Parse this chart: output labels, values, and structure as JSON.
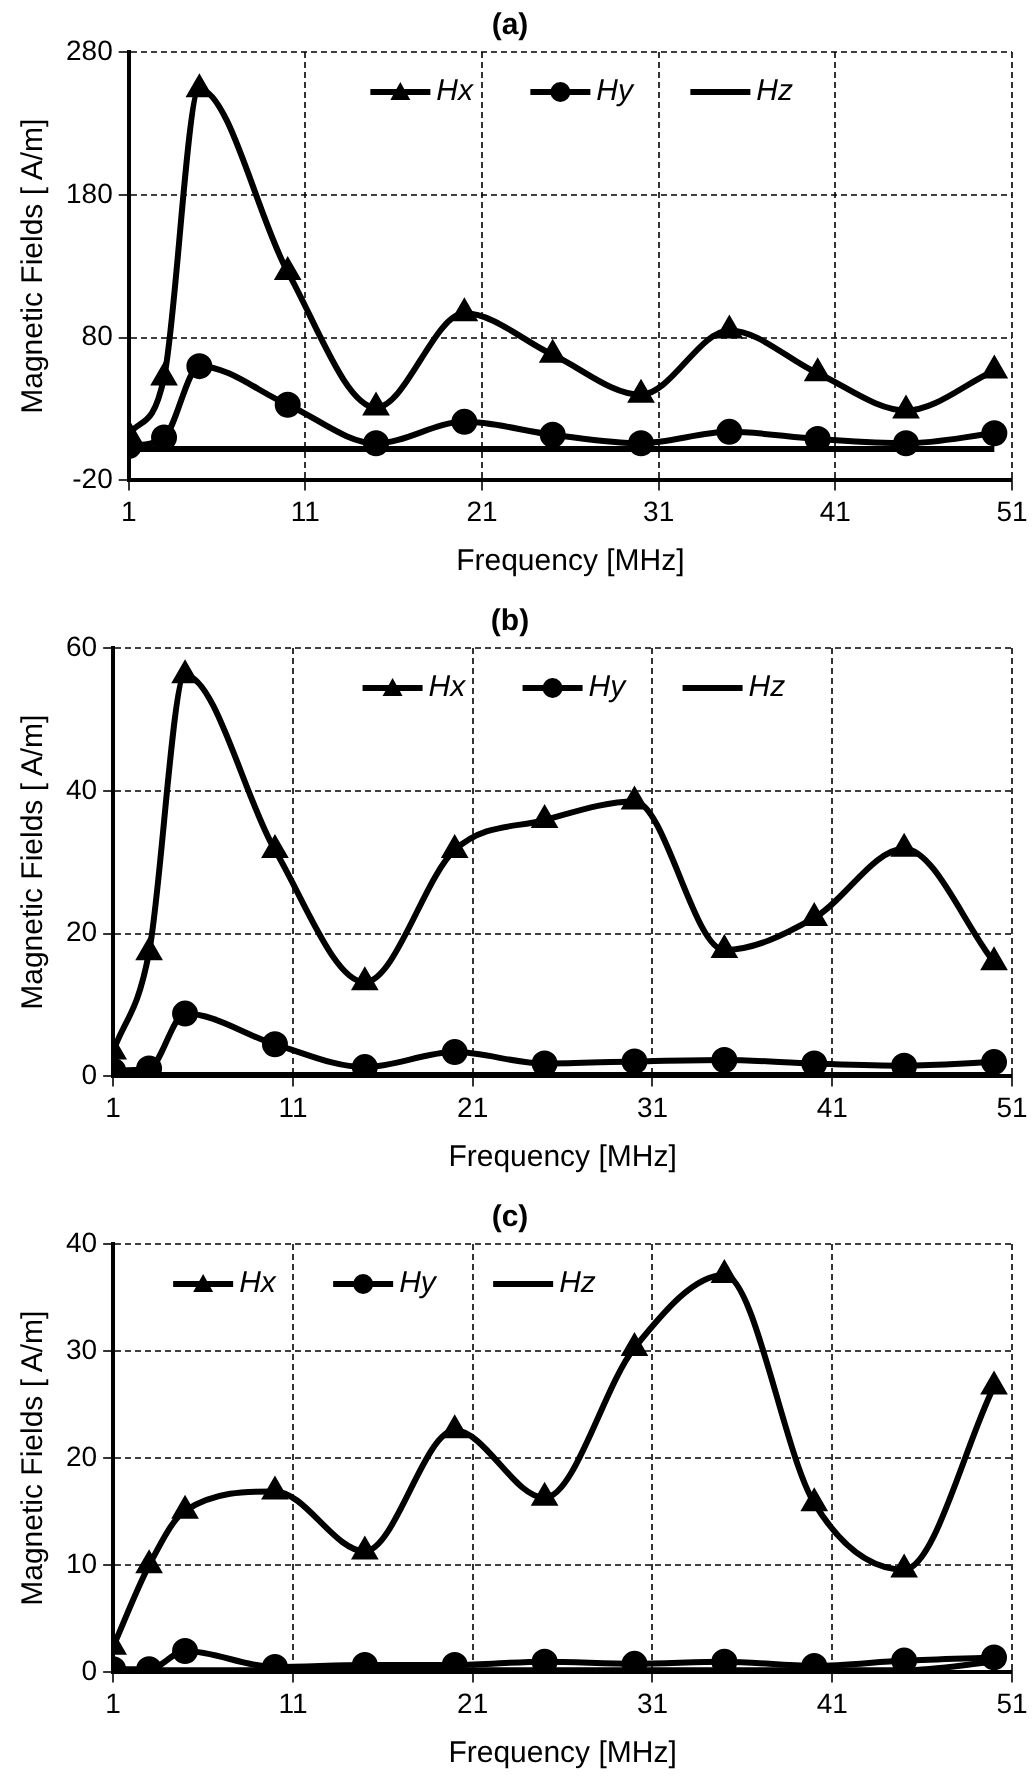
{
  "chart_data": [
    {
      "type": "line",
      "title": "(a)",
      "xlabel": "Frequency [MHz]",
      "ylabel": "Magnetic Fields [ A/m]",
      "x": [
        1,
        3,
        5,
        10,
        15,
        20,
        25,
        30,
        35,
        40,
        45,
        50
      ],
      "xlim": [
        1,
        51
      ],
      "xticks": [
        1,
        11,
        21,
        31,
        41,
        51
      ],
      "ylim": [
        -20,
        280
      ],
      "yticks": [
        -20,
        80,
        180,
        280
      ],
      "grid": true,
      "legend": "top",
      "line_style": "solid",
      "series": [
        {
          "name": "Hx",
          "color": "#000000",
          "marker": "triangle",
          "values": [
            12,
            52,
            254,
            126,
            31,
            97,
            68,
            40,
            85,
            55,
            29,
            57
          ]
        },
        {
          "name": "Hy",
          "color": "#000000",
          "marker": "circle",
          "values": [
            4,
            10,
            60,
            33,
            6,
            21,
            12,
            6,
            14,
            9,
            6,
            13
          ]
        },
        {
          "name": "Hz",
          "color": "#000000",
          "marker": "none",
          "values": [
            2,
            2,
            2,
            2,
            2,
            2,
            2,
            2,
            2,
            2,
            2,
            2
          ]
        }
      ]
    },
    {
      "type": "line",
      "title": "(b)",
      "xlabel": "Frequency [MHz]",
      "ylabel": "Magnetic Fields [ A/m]",
      "x": [
        1,
        3,
        5,
        10,
        15,
        20,
        25,
        30,
        35,
        40,
        45,
        50
      ],
      "xlim": [
        1,
        51
      ],
      "xticks": [
        1,
        11,
        21,
        31,
        41,
        51
      ],
      "ylim": [
        0,
        60
      ],
      "yticks": [
        0,
        20,
        40,
        60
      ],
      "grid": true,
      "legend": "top",
      "line_style": "solid",
      "series": [
        {
          "name": "Hx",
          "color": "#000000",
          "marker": "triangle",
          "values": [
            3.5,
            17.4,
            56.2,
            31.7,
            13.2,
            31.7,
            35.9,
            38.5,
            17.7,
            22.2,
            31.9,
            16
          ]
        },
        {
          "name": "Hy",
          "color": "#000000",
          "marker": "circle",
          "values": [
            0.8,
            1.1,
            8.8,
            4.5,
            1.3,
            3.4,
            1.8,
            2.1,
            2.3,
            1.8,
            1.5,
            2
          ]
        },
        {
          "name": "Hz",
          "color": "#000000",
          "marker": "none",
          "values": [
            0.2,
            0.2,
            0.2,
            0.2,
            0.2,
            0.2,
            0.2,
            0.2,
            0.2,
            0.2,
            0.2,
            0.2
          ]
        }
      ]
    },
    {
      "type": "line",
      "title": "(c)",
      "xlabel": "Frequency [MHz]",
      "ylabel": "Magnetic Fields [ A/m]",
      "x": [
        1,
        3,
        5,
        10,
        15,
        20,
        25,
        30,
        35,
        40,
        45,
        50
      ],
      "xlim": [
        1,
        51
      ],
      "xticks": [
        1,
        11,
        21,
        31,
        41,
        51
      ],
      "ylim": [
        0,
        40
      ],
      "yticks": [
        0,
        10,
        20,
        30,
        40
      ],
      "grid": true,
      "legend": "top left",
      "line_style": "solid",
      "series": [
        {
          "name": "Hx",
          "color": "#000000",
          "marker": "triangle",
          "values": [
            2.4,
            10,
            15.1,
            16.9,
            11.3,
            22.6,
            16.3,
            30.3,
            37.1,
            15.8,
            9.6,
            26.7
          ]
        },
        {
          "name": "Hy",
          "color": "#000000",
          "marker": "circle",
          "values": [
            0.3,
            0.3,
            2,
            0.5,
            0.7,
            0.7,
            1,
            0.8,
            1,
            0.6,
            1.1,
            1.4
          ]
        },
        {
          "name": "Hz",
          "color": "#000000",
          "marker": "none",
          "values": [
            0.2,
            0.2,
            0.2,
            0.2,
            0.2,
            0.2,
            0.2,
            0.2,
            0.2,
            0.2,
            0.2,
            1
          ]
        }
      ]
    }
  ]
}
